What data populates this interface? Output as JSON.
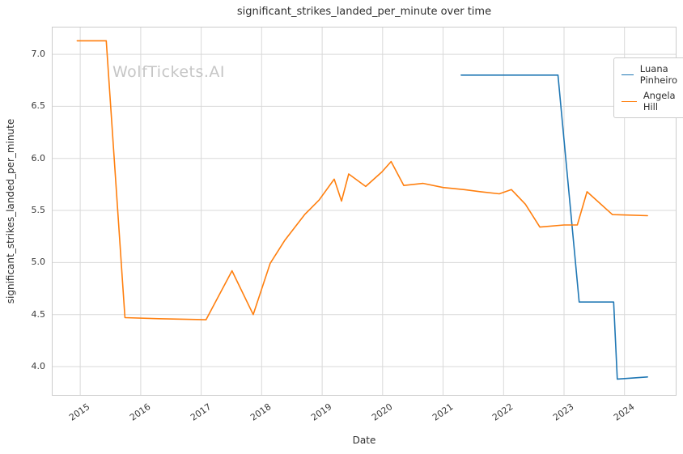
{
  "watermark": "WolfTickets.AI",
  "colors": {
    "series_blue": "#1f77b4",
    "series_orange": "#ff7f0e",
    "grid": "#d9d9d9",
    "plot_border": "#cccccc",
    "text": "#2f2f2f",
    "watermark": "#c6c6c6"
  },
  "chart_data": {
    "type": "line",
    "title": "significant_strikes_landed_per_minute over time",
    "xlabel": "Date",
    "ylabel": "significant_strikes_landed_per_minute",
    "grid": true,
    "legend_position": "upper right",
    "xlim": [
      2014.53,
      2024.86
    ],
    "ylim": [
      3.72,
      7.265
    ],
    "x_ticks": [
      2015,
      2016,
      2017,
      2018,
      2019,
      2020,
      2021,
      2022,
      2023,
      2024
    ],
    "y_ticks": [
      4.0,
      4.5,
      5.0,
      5.5,
      6.0,
      6.5,
      7.0
    ],
    "series": [
      {
        "name": "Luana Pinheiro",
        "color": "#1f77b4",
        "x": [
          2021.3,
          2022.9,
          2023.25,
          2023.82,
          2023.88,
          2024.38
        ],
        "y": [
          6.8,
          6.8,
          4.62,
          4.62,
          3.88,
          3.9
        ]
      },
      {
        "name": "Angela Hill",
        "color": "#ff7f0e",
        "x": [
          2014.95,
          2015.43,
          2015.74,
          2016.3,
          2017.08,
          2017.51,
          2017.86,
          2018.14,
          2018.38,
          2018.71,
          2018.95,
          2019.2,
          2019.32,
          2019.44,
          2019.72,
          2019.99,
          2020.14,
          2020.35,
          2020.67,
          2021.0,
          2021.35,
          2021.62,
          2021.93,
          2022.13,
          2022.36,
          2022.6,
          2023.0,
          2023.22,
          2023.38,
          2023.8,
          2024.38
        ],
        "y": [
          7.13,
          7.13,
          4.47,
          4.46,
          4.45,
          4.92,
          4.5,
          4.99,
          5.21,
          5.46,
          5.6,
          5.8,
          5.59,
          5.85,
          5.73,
          5.87,
          5.97,
          5.74,
          5.76,
          5.72,
          5.7,
          5.68,
          5.66,
          5.7,
          5.56,
          5.34,
          5.36,
          5.36,
          5.68,
          5.46,
          5.45
        ]
      }
    ]
  }
}
